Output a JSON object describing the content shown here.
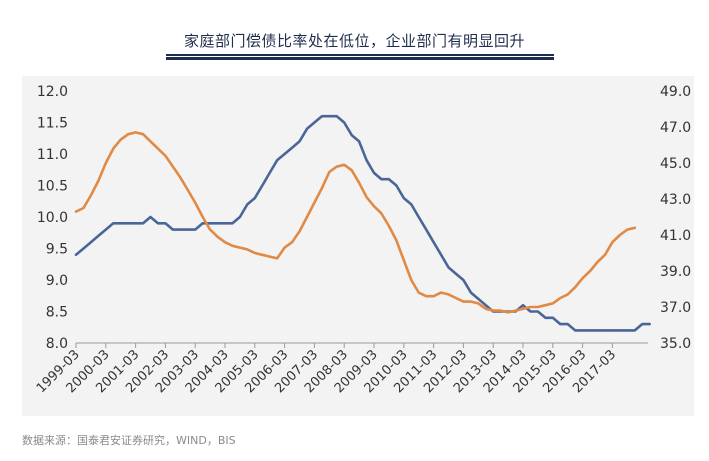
{
  "title": "家庭部门偿债比率处在低位，企业部门有明显回升",
  "source": "数据来源：国泰君安证券研究，WIND，BIS",
  "colors": {
    "household": "#4a6698",
    "corporate": "#e08a45",
    "title": "#1f2d4d",
    "background": "#f3f3f3"
  },
  "chart_data": {
    "type": "line",
    "title": "家庭部门偿债比率处在低位，企业部门有明显回升",
    "grid": false,
    "legend": "none",
    "x_start": "1999-03",
    "x_step_quarters": 1,
    "x_tick_labels": [
      "1999-03",
      "2000-03",
      "2001-03",
      "2002-03",
      "2003-03",
      "2004-03",
      "2005-03",
      "2006-03",
      "2007-03",
      "2008-03",
      "2009-03",
      "2010-03",
      "2011-03",
      "2012-03",
      "2013-03",
      "2014-03",
      "2015-03",
      "2016-03",
      "2017-03"
    ],
    "y_left": {
      "min": 8.0,
      "max": 12.0,
      "ticks": [
        "8.0",
        "8.5",
        "9.0",
        "9.5",
        "10.0",
        "10.5",
        "11.0",
        "11.5",
        "12.0"
      ]
    },
    "y_right": {
      "min": 35.0,
      "max": 49.0,
      "ticks": [
        "35.0",
        "37.0",
        "39.0",
        "41.0",
        "43.0",
        "45.0",
        "47.0",
        "49.0"
      ]
    },
    "series": [
      {
        "axis": "left",
        "color": "#4a6698",
        "values": [
          9.4,
          9.5,
          9.6,
          9.7,
          9.8,
          9.9,
          9.9,
          9.9,
          9.9,
          9.9,
          10.0,
          9.9,
          9.9,
          9.8,
          9.8,
          9.8,
          9.8,
          9.9,
          9.9,
          9.9,
          9.9,
          9.9,
          10.0,
          10.2,
          10.3,
          10.5,
          10.7,
          10.9,
          11.0,
          11.1,
          11.2,
          11.4,
          11.5,
          11.6,
          11.6,
          11.6,
          11.5,
          11.3,
          11.2,
          10.9,
          10.7,
          10.6,
          10.6,
          10.5,
          10.3,
          10.2,
          10.0,
          9.8,
          9.6,
          9.4,
          9.2,
          9.1,
          9.0,
          8.8,
          8.7,
          8.6,
          8.5,
          8.5,
          8.5,
          8.5,
          8.6,
          8.5,
          8.5,
          8.4,
          8.4,
          8.3,
          8.3,
          8.2,
          8.2,
          8.2,
          8.2,
          8.2,
          8.2,
          8.2,
          8.2,
          8.2,
          8.3,
          8.3
        ]
      },
      {
        "axis": "right",
        "color": "#e08a45",
        "values": [
          42.3,
          42.5,
          43.2,
          44.0,
          45.0,
          45.8,
          46.3,
          46.6,
          46.7,
          46.6,
          46.2,
          45.8,
          45.4,
          44.8,
          44.2,
          43.5,
          42.8,
          42.0,
          41.3,
          40.9,
          40.6,
          40.4,
          40.3,
          40.2,
          40.0,
          39.9,
          39.8,
          39.7,
          40.3,
          40.6,
          41.2,
          42.0,
          42.8,
          43.6,
          44.5,
          44.8,
          44.9,
          44.6,
          43.9,
          43.1,
          42.6,
          42.2,
          41.5,
          40.7,
          39.6,
          38.5,
          37.8,
          37.6,
          37.6,
          37.8,
          37.7,
          37.5,
          37.3,
          37.3,
          37.2,
          36.9,
          36.8,
          36.8,
          36.7,
          36.8,
          36.9,
          37.0,
          37.0,
          37.1,
          37.2,
          37.5,
          37.7,
          38.1,
          38.6,
          39.0,
          39.5,
          39.9,
          40.6,
          41.0,
          41.3,
          41.4
        ]
      }
    ]
  }
}
